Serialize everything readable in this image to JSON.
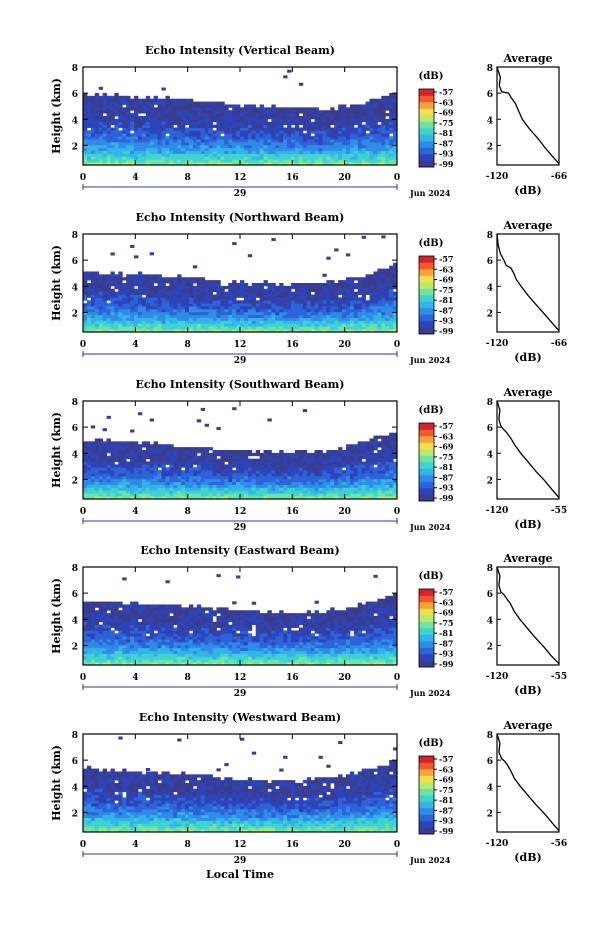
{
  "panel_unit": "(dB)",
  "average_title": "Average",
  "date_label": "Jun 2024",
  "day_label": "29",
  "x_axis_label": "Local Time",
  "y_axis_label": "Height (km)",
  "colorbar_ticks": [
    "-57",
    "-63",
    "-69",
    "-75",
    "-81",
    "-87",
    "-93",
    "-99"
  ],
  "colorbar_colors": [
    "#3a3d8f",
    "#2c44b8",
    "#2d63d9",
    "#2f8be6",
    "#32b4e6",
    "#3ed2d0",
    "#6ee3a6",
    "#b8ea6e",
    "#f0e04c",
    "#f6a23a",
    "#f05a2b",
    "#d4232a"
  ],
  "chart_data": [
    {
      "type": "heatmap",
      "title": "Echo Intensity (Vertical Beam)",
      "x_ticks": [
        "0",
        "4",
        "8",
        "12",
        "16",
        "20",
        "0"
      ],
      "y_ticks": [
        "2",
        "4",
        "6",
        "8"
      ],
      "ylim": [
        0.5,
        8.0
      ],
      "colorbar_range": [
        -99,
        -57
      ],
      "upper_boundary_km": [
        5.8,
        5.7,
        5.6,
        5.4,
        5.1,
        4.9,
        4.8,
        4.7,
        5.0,
        6.0
      ],
      "average_profile": {
        "xlim": [
          -120,
          -66
        ],
        "x_ticks": [
          "-120",
          "-66"
        ],
        "y_ticks": [
          "2",
          "4",
          "6",
          "8"
        ],
        "xlabel": "(dB)",
        "x": [
          -66,
          -72,
          -78,
          -84,
          -92,
          -98,
          -101,
          -104,
          -108,
          -110,
          -116,
          -118,
          -117,
          -120
        ],
        "y": [
          0.6,
          1.2,
          1.8,
          2.5,
          3.3,
          4.0,
          4.6,
          5.2,
          5.7,
          6.0,
          6.1,
          6.6,
          7.2,
          8.0
        ]
      }
    },
    {
      "type": "heatmap",
      "title": "Echo Intensity (Northward Beam)",
      "x_ticks": [
        "0",
        "4",
        "8",
        "12",
        "16",
        "20",
        "0"
      ],
      "y_ticks": [
        "2",
        "4",
        "6",
        "8"
      ],
      "ylim": [
        0.5,
        8.0
      ],
      "colorbar_range": [
        -99,
        -57
      ],
      "upper_boundary_km": [
        5.0,
        4.9,
        4.8,
        4.6,
        4.3,
        4.2,
        4.1,
        4.2,
        4.6,
        5.5
      ],
      "average_profile": {
        "xlim": [
          -120,
          -66
        ],
        "x_ticks": [
          "-120",
          "-66"
        ],
        "y_ticks": [
          "2",
          "4",
          "6",
          "8"
        ],
        "xlabel": "(dB)",
        "x": [
          -66,
          -72,
          -79,
          -86,
          -93,
          -99,
          -103,
          -106,
          -108,
          -112,
          -114,
          -117,
          -119,
          -120
        ],
        "y": [
          0.6,
          1.2,
          1.9,
          2.6,
          3.3,
          4.0,
          4.5,
          5.1,
          5.4,
          5.6,
          6.0,
          6.5,
          7.2,
          8.0
        ]
      }
    },
    {
      "type": "heatmap",
      "title": "Echo Intensity (Southward Beam)",
      "x_ticks": [
        "0",
        "4",
        "8",
        "12",
        "16",
        "20",
        "0"
      ],
      "y_ticks": [
        "2",
        "4",
        "6",
        "8"
      ],
      "ylim": [
        0.5,
        8.0
      ],
      "colorbar_range": [
        -99,
        -55
      ],
      "upper_boundary_km": [
        4.9,
        4.8,
        4.6,
        4.4,
        4.2,
        4.0,
        3.9,
        4.1,
        4.7,
        5.6
      ],
      "average_profile": {
        "xlim": [
          -120,
          -55
        ],
        "x_ticks": [
          "-120",
          "-55"
        ],
        "y_ticks": [
          "2",
          "4",
          "6",
          "8"
        ],
        "xlabel": "(dB)",
        "x": [
          -55,
          -62,
          -70,
          -79,
          -87,
          -95,
          -101,
          -106,
          -110,
          -114,
          -116,
          -118,
          -117,
          -120
        ],
        "y": [
          0.6,
          1.2,
          1.9,
          2.6,
          3.3,
          4.0,
          4.6,
          5.2,
          5.6,
          5.9,
          6.1,
          6.6,
          7.3,
          8.0
        ]
      }
    },
    {
      "type": "heatmap",
      "title": "Echo Intensity (Eastward Beam)",
      "x_ticks": [
        "0",
        "4",
        "8",
        "12",
        "16",
        "20",
        "0"
      ],
      "y_ticks": [
        "2",
        "4",
        "6",
        "8"
      ],
      "ylim": [
        0.5,
        8.0
      ],
      "colorbar_range": [
        -99,
        -57
      ],
      "upper_boundary_km": [
        5.3,
        5.2,
        5.1,
        4.9,
        4.7,
        4.5,
        4.4,
        4.5,
        5.0,
        5.8
      ],
      "average_profile": {
        "xlim": [
          -120,
          -55
        ],
        "x_ticks": [
          "-120",
          "-55"
        ],
        "y_ticks": [
          "2",
          "4",
          "6",
          "8"
        ],
        "xlabel": "(dB)",
        "x": [
          -55,
          -63,
          -71,
          -80,
          -88,
          -96,
          -102,
          -106,
          -110,
          -113,
          -116,
          -118,
          -117,
          -120
        ],
        "y": [
          0.6,
          1.2,
          1.9,
          2.6,
          3.3,
          4.0,
          4.6,
          5.2,
          5.6,
          5.9,
          6.1,
          6.6,
          7.3,
          8.0
        ]
      }
    },
    {
      "type": "heatmap",
      "title": "Echo Intensity (Westward Beam)",
      "x_ticks": [
        "0",
        "4",
        "8",
        "12",
        "16",
        "20",
        "0"
      ],
      "y_ticks": [
        "2",
        "4",
        "6",
        "8"
      ],
      "ylim": [
        0.5,
        8.0
      ],
      "colorbar_range": [
        -99,
        -57
      ],
      "upper_boundary_km": [
        5.3,
        5.1,
        5.0,
        4.8,
        4.6,
        4.4,
        4.3,
        4.5,
        5.0,
        5.9
      ],
      "average_profile": {
        "xlim": [
          -120,
          -56
        ],
        "x_ticks": [
          "-120",
          "-56"
        ],
        "y_ticks": [
          "2",
          "4",
          "6",
          "8"
        ],
        "xlabel": "(dB)",
        "x": [
          -56,
          -63,
          -71,
          -80,
          -88,
          -96,
          -102,
          -106,
          -109,
          -112,
          -115,
          -118,
          -117,
          -120
        ],
        "y": [
          0.6,
          1.2,
          1.9,
          2.6,
          3.3,
          4.0,
          4.6,
          5.2,
          5.6,
          5.9,
          6.1,
          6.6,
          7.3,
          8.0
        ]
      }
    }
  ]
}
